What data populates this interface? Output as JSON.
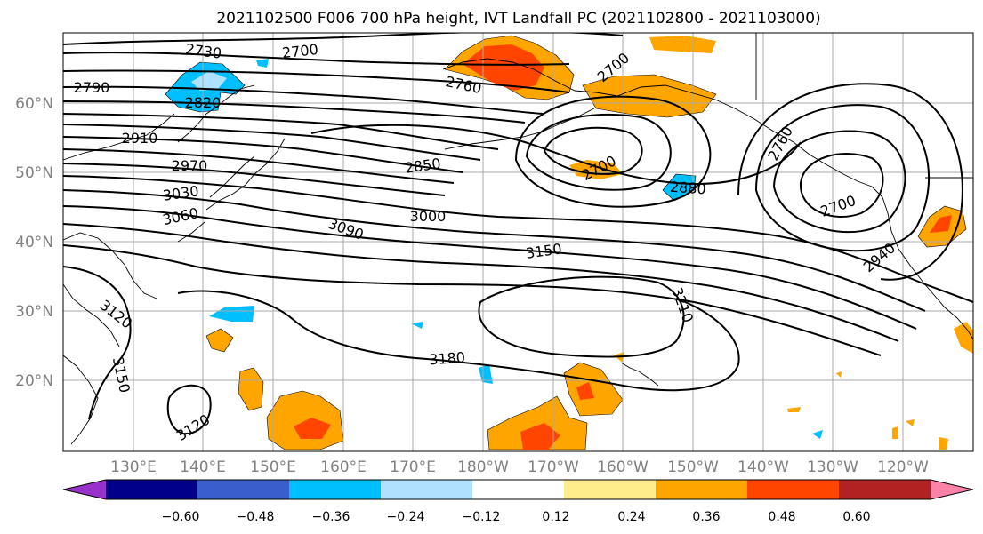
{
  "title": "2021102500 F006 700 hPa height, IVT Landfall PC (2021102800 - 2021103000)",
  "axes": {
    "lat_labels": [
      "60°N",
      "50°N",
      "40°N",
      "30°N",
      "20°N"
    ],
    "lon_labels": [
      "130°E",
      "140°E",
      "150°E",
      "160°E",
      "170°E",
      "180°W",
      "170°W",
      "160°W",
      "150°W",
      "140°W",
      "130°W",
      "120°W"
    ],
    "gridlines": true
  },
  "contours": {
    "labels": [
      "2730",
      "2700",
      "2790",
      "2820",
      "2760",
      "2700",
      "2910",
      "2970",
      "2850",
      "2700",
      "2880",
      "2760",
      "3030",
      "3060",
      "3090",
      "3000",
      "2700",
      "3150",
      "2940",
      "3210",
      "3120",
      "3150",
      "3180",
      "3120"
    ]
  },
  "colorbar": {
    "ticks": [
      "−0.60",
      "−0.48",
      "−0.36",
      "−0.24",
      "−0.12",
      "0.12",
      "0.24",
      "0.36",
      "0.48",
      "0.60"
    ],
    "colors": [
      "#9932cc",
      "#00008b",
      "#3a5fcd",
      "#00bfff",
      "#b0e2ff",
      "#ffffff",
      "#ffec8b",
      "#ffa500",
      "#ff4500",
      "#b22222",
      "#ff83a8"
    ]
  }
}
